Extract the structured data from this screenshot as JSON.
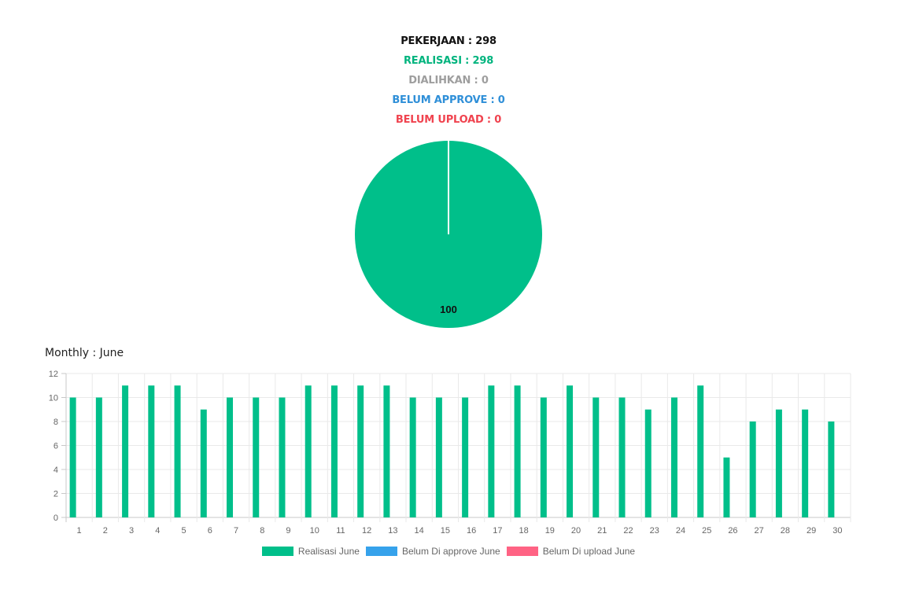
{
  "stats": [
    {
      "label": "PEKERJAAN : 298",
      "color": "#111111"
    },
    {
      "label": "REALISASI : 298",
      "color": "#00b47e"
    },
    {
      "label": "DIALIHKAN : 0",
      "color": "#9e9e9e"
    },
    {
      "label": "BELUM APPROVE : 0",
      "color": "#2f8fd8"
    },
    {
      "label": "BELUM UPLOAD : 0",
      "color": "#f0434f"
    }
  ],
  "chart_data": [
    {
      "type": "pie",
      "slices": [
        {
          "value": 100,
          "color": "#00bf8a"
        }
      ],
      "data_labels": [
        "100"
      ]
    },
    {
      "type": "bar",
      "title": "Monthly : June",
      "categories": [
        "1",
        "2",
        "3",
        "4",
        "5",
        "6",
        "7",
        "8",
        "9",
        "10",
        "11",
        "12",
        "13",
        "14",
        "15",
        "16",
        "17",
        "18",
        "19",
        "20",
        "21",
        "22",
        "23",
        "24",
        "25",
        "26",
        "27",
        "28",
        "29",
        "30"
      ],
      "ylim": [
        0,
        12
      ],
      "yticks": [
        0,
        2,
        4,
        6,
        8,
        10,
        12
      ],
      "grid": true,
      "legend_position": "bottom",
      "series": [
        {
          "name": "Realisasi June",
          "color": "#00bf8a",
          "values": [
            10,
            10,
            11,
            11,
            11,
            9,
            10,
            10,
            10,
            11,
            11,
            11,
            11,
            10,
            10,
            10,
            11,
            11,
            10,
            11,
            10,
            10,
            9,
            10,
            11,
            5,
            8,
            9,
            9,
            8
          ]
        },
        {
          "name": "Belum Di approve June",
          "color": "#36a2eb",
          "values": [
            0,
            0,
            0,
            0,
            0,
            0,
            0,
            0,
            0,
            0,
            0,
            0,
            0,
            0,
            0,
            0,
            0,
            0,
            0,
            0,
            0,
            0,
            0,
            0,
            0,
            0,
            0,
            0,
            0,
            0
          ]
        },
        {
          "name": "Belum Di upload June",
          "color": "#ff6384",
          "values": [
            0,
            0,
            0,
            0,
            0,
            0,
            0,
            0,
            0,
            0,
            0,
            0,
            0,
            0,
            0,
            0,
            0,
            0,
            0,
            0,
            0,
            0,
            0,
            0,
            0,
            0,
            0,
            0,
            0,
            0
          ]
        }
      ]
    }
  ]
}
